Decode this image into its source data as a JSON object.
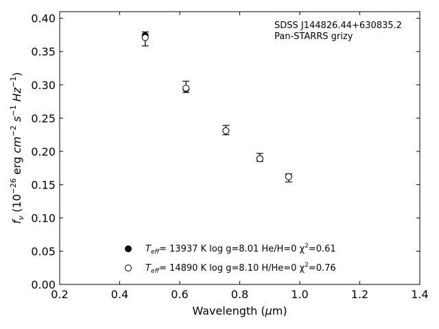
{
  "chart_data": {
    "type": "scatter",
    "xlabel": "Wavelength (μm)",
    "ylabel": "f_ν (10^-26 erg cm^-2 s^-1 Hz^-1)",
    "xlim": [
      0.2,
      1.4
    ],
    "ylim": [
      0.0,
      0.41
    ],
    "x_ticks": [
      "0.2",
      "0.4",
      "0.6",
      "0.8",
      "1.0",
      "1.2",
      "1.4"
    ],
    "y_ticks": [
      "0.00",
      "0.05",
      "0.10",
      "0.15",
      "0.20",
      "0.25",
      "0.30",
      "0.35",
      "0.40"
    ],
    "annotation": {
      "line1": "SDSS J144826.44+630835.2",
      "line2": "Pan-STARRS grizy"
    },
    "observed": {
      "x": [
        0.485,
        0.621,
        0.754,
        0.867,
        0.963
      ],
      "y": [
        0.369,
        0.297,
        0.232,
        0.191,
        0.16
      ],
      "yerr": [
        0.0105,
        0.0085,
        0.007,
        0.006,
        0.006
      ]
    },
    "series": [
      {
        "name": "Teff= 13937 K  log g=8.01  He/H=0  χ²=0.61",
        "marker": "filled",
        "x": [
          0.485,
          0.621,
          0.754,
          0.867,
          0.963
        ],
        "y": [
          0.374,
          0.294,
          0.231,
          0.189,
          0.162
        ]
      },
      {
        "name": "Teff= 14890 K  log g=8.10  H/He=0  χ²=0.76",
        "marker": "open",
        "x": [
          0.485,
          0.621,
          0.754,
          0.867,
          0.963
        ],
        "y": [
          0.371,
          0.295,
          0.231,
          0.189,
          0.162
        ]
      }
    ],
    "legend": {
      "placement": "lower-center",
      "entries": [
        {
          "teff_label": "T",
          "teff_sub": "eff",
          "rest": "= 13937 K  log g=8.01  He/H=0  χ",
          "sup": "2",
          "tail": "=0.61"
        },
        {
          "teff_label": "T",
          "teff_sub": "eff",
          "rest": "= 14890 K  log g=8.10  H/He=0  χ",
          "sup": "2",
          "tail": "=0.76"
        }
      ]
    }
  }
}
